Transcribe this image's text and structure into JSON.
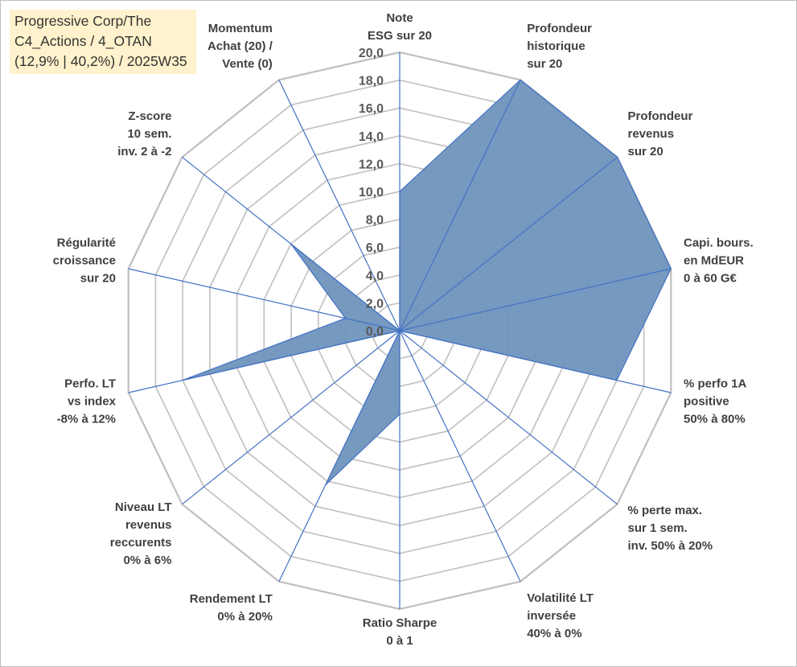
{
  "title_lines": [
    "Progressive Corp/The",
    "C4_Actions / 4_OTAN",
    "(12,9% | 40,2%) / 2025W35"
  ],
  "chart_data": {
    "type": "radar",
    "rmin": 0,
    "rmax": 20,
    "tick_labels": [
      "0,0",
      "2,0",
      "4,0",
      "6,0",
      "8,0",
      "10,0",
      "12,0",
      "14,0",
      "16,0",
      "18,0",
      "20,0"
    ],
    "axes": [
      {
        "lines": [
          "Note",
          "ESG sur 20"
        ]
      },
      {
        "lines": [
          "Profondeur",
          "historique",
          "sur 20"
        ]
      },
      {
        "lines": [
          "Profondeur",
          "revenus",
          "sur 20"
        ]
      },
      {
        "lines": [
          "Capi. bours.",
          "en MdEUR",
          "0 à 60 G€"
        ]
      },
      {
        "lines": [
          "% perfo 1A",
          "positive",
          "50% à 80%"
        ]
      },
      {
        "lines": [
          "% perte max.",
          "sur 1 sem.",
          "inv. 50% à 20%"
        ]
      },
      {
        "lines": [
          "Volatilité LT",
          "inversée",
          "40% à 0%"
        ]
      },
      {
        "lines": [
          "Ratio Sharpe",
          "0 à 1"
        ]
      },
      {
        "lines": [
          "Rendement LT",
          "0% à 20%"
        ]
      },
      {
        "lines": [
          "Niveau LT",
          "revenus",
          "reccurents",
          "0% à 6%"
        ]
      },
      {
        "lines": [
          "Perfo. LT",
          "vs index",
          "-8% à 12%"
        ]
      },
      {
        "lines": [
          "Régularité",
          "croissance",
          "sur 20"
        ]
      },
      {
        "lines": [
          "Z-score",
          "10 sem.",
          "inv. 2 à -2"
        ]
      },
      {
        "lines": [
          "Momentum",
          "Achat (20) /",
          "Vente (0)"
        ]
      }
    ],
    "values": [
      10,
      20,
      20,
      20,
      16,
      0,
      0,
      6,
      12.3,
      0,
      16,
      4,
      10,
      0
    ],
    "colors": {
      "fill": "#6f93bd",
      "stroke": "#4472c4",
      "spoke": "#4472c4",
      "grid": "#bfbfbf"
    }
  }
}
